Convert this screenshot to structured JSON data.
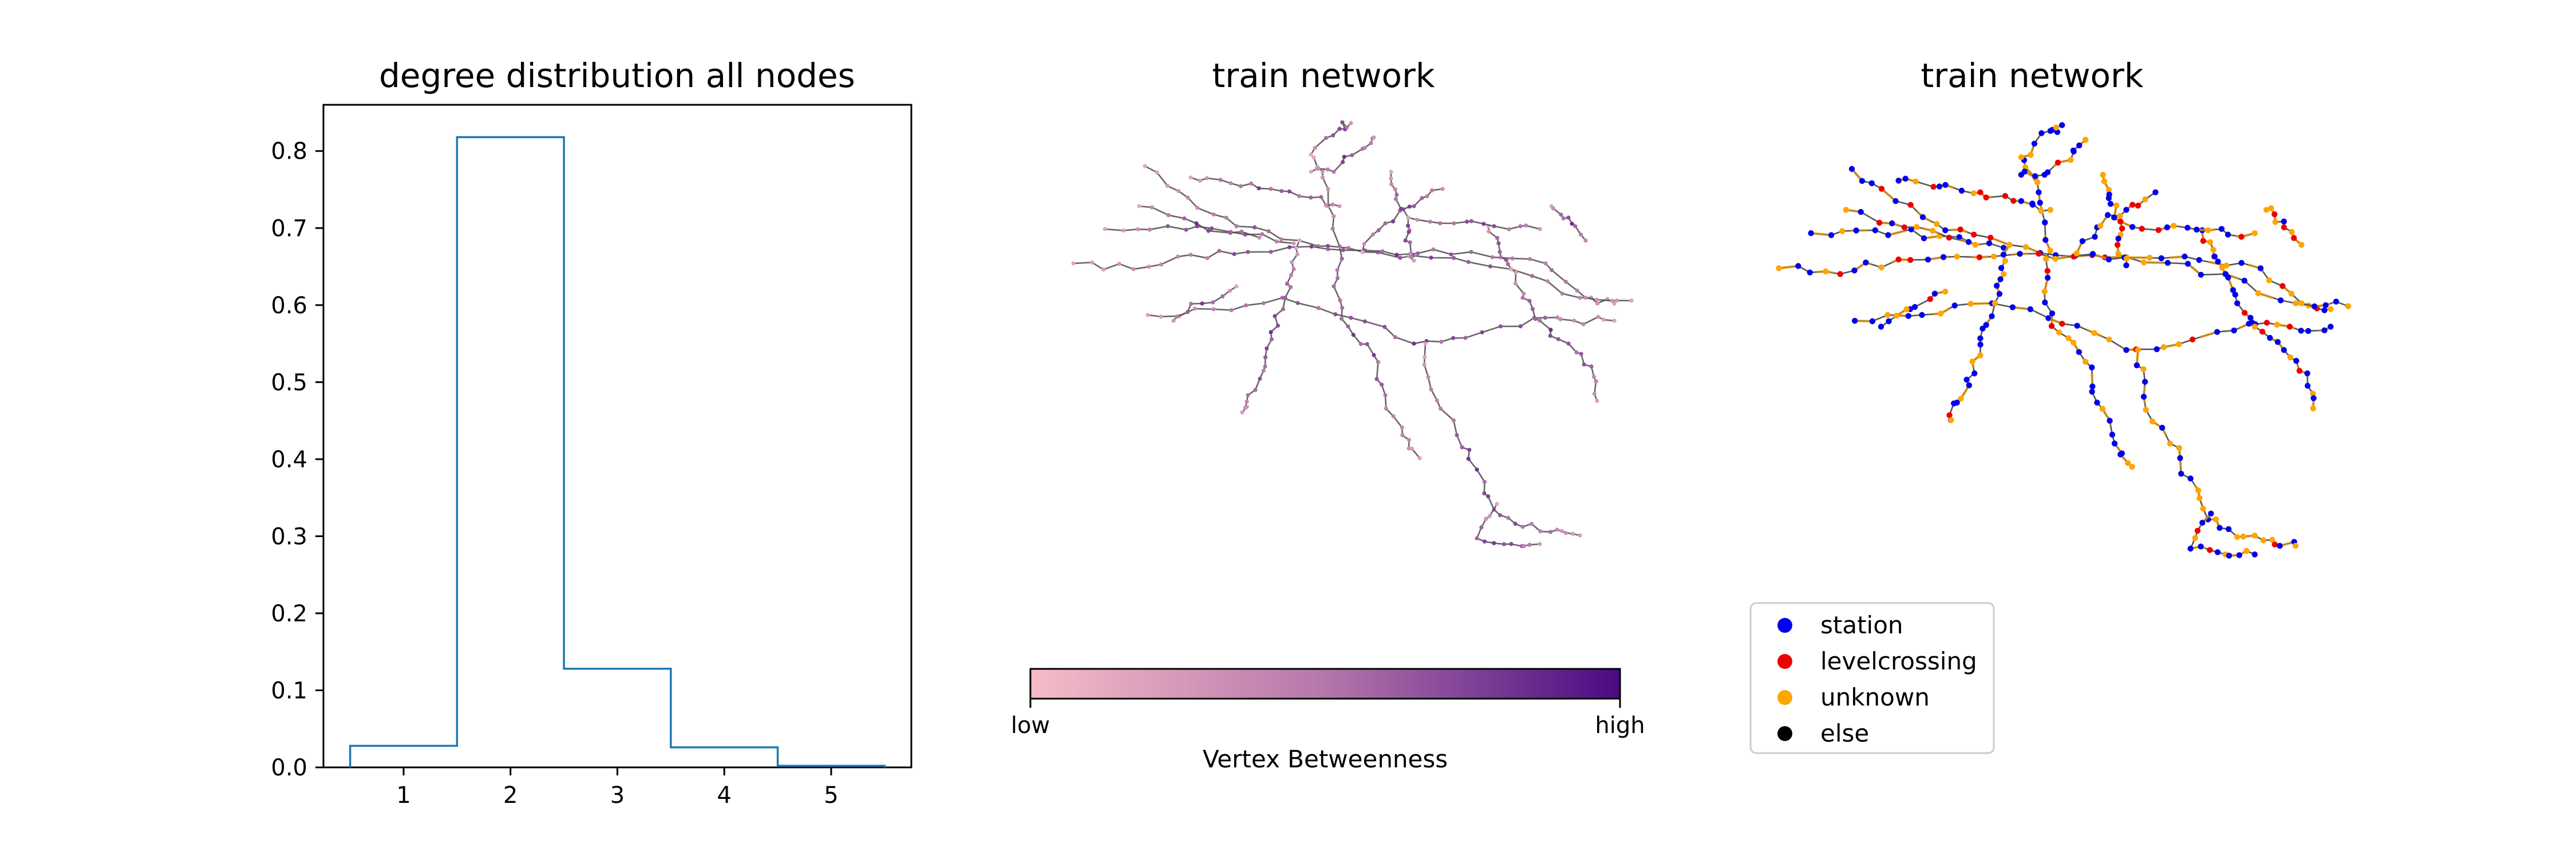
{
  "chart_data": [
    {
      "type": "histogram",
      "title": "degree distribution  all nodes",
      "xlabel": "",
      "ylabel": "",
      "xlim": [
        0.25,
        5.75
      ],
      "ylim": [
        0,
        0.86
      ],
      "xticks": [
        "1",
        "2",
        "3",
        "4",
        "5"
      ],
      "yticks": [
        "0.0",
        "0.1",
        "0.2",
        "0.3",
        "0.4",
        "0.5",
        "0.6",
        "0.7",
        "0.8"
      ],
      "bins": [
        {
          "x0": 0.5,
          "x1": 1.5,
          "value": 0.028
        },
        {
          "x0": 1.5,
          "x1": 2.5,
          "value": 0.818
        },
        {
          "x0": 2.5,
          "x1": 3.5,
          "value": 0.128
        },
        {
          "x0": 3.5,
          "x1": 4.5,
          "value": 0.026
        },
        {
          "x0": 4.5,
          "x1": 5.5,
          "value": 0.002
        }
      ],
      "color": "#1f77b4"
    },
    {
      "type": "network",
      "title": "train network",
      "colorbar": {
        "label": "Vertex Betweenness",
        "low_label": "low",
        "high_label": "high",
        "color_low": "#f7bcc8",
        "color_mid": "#b477aa",
        "color_high": "#4a0a82"
      }
    },
    {
      "type": "network",
      "title": "train network",
      "legend": {
        "placement": "lower-left",
        "entries": [
          {
            "label": "station",
            "color": "#0000ee"
          },
          {
            "label": "levelcrossing",
            "color": "#ee0000"
          },
          {
            "label": "unknown",
            "color": "#ffa500"
          },
          {
            "label": "else",
            "color": "#000000"
          }
        ]
      }
    }
  ]
}
